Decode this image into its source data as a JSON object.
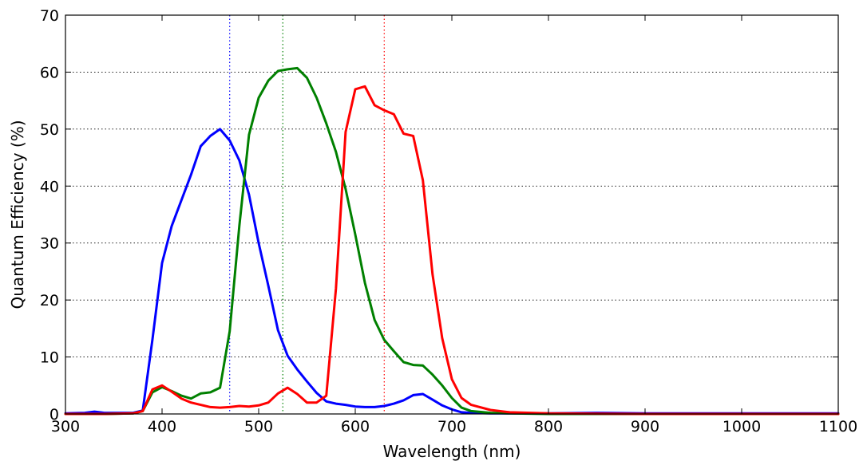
{
  "chart_data": {
    "type": "line",
    "title": "",
    "xlabel": "Wavelength (nm)",
    "ylabel": "Quantum Efficiency (%)",
    "xlim": [
      300,
      1100
    ],
    "ylim": [
      0,
      70
    ],
    "x_ticks": [
      300,
      400,
      500,
      600,
      700,
      800,
      900,
      1000,
      1100
    ],
    "y_ticks": [
      0,
      10,
      20,
      30,
      40,
      50,
      60,
      70
    ],
    "x_tick_labels": [
      "300",
      "400",
      "500",
      "600",
      "700",
      "800",
      "900",
      "1000",
      "1100"
    ],
    "y_tick_labels": [
      "0",
      "10",
      "20",
      "30",
      "40",
      "50",
      "60",
      "70"
    ],
    "grid": "horizontal dotted",
    "legend": "none",
    "series": [
      {
        "color": "#0000ff",
        "x": [
          300,
          320,
          330,
          340,
          360,
          370,
          380,
          390,
          400,
          410,
          420,
          430,
          440,
          450,
          460,
          470,
          480,
          490,
          500,
          510,
          520,
          530,
          540,
          550,
          560,
          570,
          580,
          590,
          600,
          610,
          620,
          630,
          640,
          650,
          660,
          670,
          680,
          690,
          700,
          710,
          720,
          740,
          760,
          800,
          850,
          900,
          950,
          1000,
          1050,
          1100
        ],
        "y": [
          0.1,
          0.2,
          0.4,
          0.2,
          0.2,
          0.2,
          0.6,
          13,
          26.5,
          33,
          37.5,
          42,
          47,
          48.8,
          50,
          48,
          44.5,
          38.5,
          30,
          22.5,
          14.7,
          10.2,
          7.8,
          5.7,
          3.7,
          2.2,
          1.8,
          1.6,
          1.3,
          1.2,
          1.2,
          1.4,
          1.8,
          2.4,
          3.3,
          3.5,
          2.5,
          1.5,
          0.8,
          0.3,
          0.2,
          0.1,
          0.1,
          0.1,
          0.2,
          0.1,
          0.1,
          0.1,
          0.1,
          0.1
        ]
      },
      {
        "color": "#008000",
        "x": [
          300,
          340,
          370,
          380,
          390,
          400,
          410,
          420,
          430,
          440,
          450,
          460,
          470,
          480,
          490,
          500,
          510,
          520,
          530,
          540,
          550,
          560,
          570,
          580,
          590,
          600,
          610,
          620,
          630,
          640,
          650,
          660,
          670,
          680,
          690,
          700,
          710,
          720,
          740,
          760,
          800,
          900,
          1000,
          1100
        ],
        "y": [
          0,
          0,
          0.1,
          0.5,
          3.8,
          4.7,
          4.0,
          3.2,
          2.7,
          3.6,
          3.8,
          4.6,
          14.5,
          33,
          49,
          55.5,
          58.5,
          60.2,
          60.5,
          60.7,
          59,
          55.5,
          51,
          46,
          39.5,
          31.5,
          23,
          16.5,
          13,
          11,
          9.1,
          8.6,
          8.5,
          6.9,
          5,
          2.8,
          1.1,
          0.5,
          0.2,
          0.1,
          0,
          0,
          0,
          0
        ]
      },
      {
        "color": "#ff0000",
        "x": [
          300,
          340,
          370,
          380,
          390,
          400,
          410,
          420,
          430,
          440,
          450,
          460,
          470,
          480,
          490,
          500,
          510,
          520,
          530,
          540,
          550,
          560,
          570,
          580,
          590,
          600,
          610,
          620,
          630,
          640,
          650,
          660,
          670,
          680,
          690,
          700,
          710,
          720,
          740,
          760,
          800,
          900,
          1000,
          1100
        ],
        "y": [
          0,
          0,
          0.1,
          0.5,
          4.3,
          5.0,
          3.9,
          2.7,
          2.0,
          1.6,
          1.2,
          1.1,
          1.2,
          1.4,
          1.3,
          1.5,
          2.0,
          3.6,
          4.6,
          3.5,
          2.0,
          2.0,
          3.2,
          22,
          49.5,
          57,
          57.5,
          54.2,
          53.3,
          52.6,
          49.2,
          48.8,
          41,
          24.5,
          13.3,
          6.1,
          2.8,
          1.6,
          0.7,
          0.3,
          0.1,
          0,
          0,
          0
        ]
      }
    ],
    "vlines": [
      {
        "x": 470,
        "color": "#0000ff"
      },
      {
        "x": 525,
        "color": "#008000"
      },
      {
        "x": 630,
        "color": "#ff0000"
      }
    ]
  }
}
